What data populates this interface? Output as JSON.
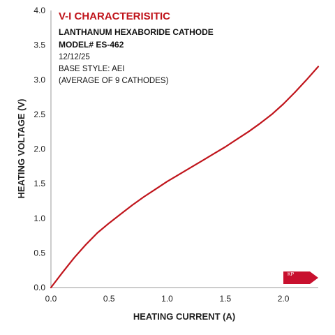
{
  "chart_data": {
    "type": "line",
    "title": "V-I CHARACTERISITIC",
    "subtitle_lines": [
      "LANTHANUM HEXABORIDE CATHODE",
      "MODEL# ES-462",
      "12/12/25",
      "BASE STYLE: AEI",
      "(AVERAGE OF 9 CATHODES)"
    ],
    "xlabel": "HEATING CURRENT (A)",
    "ylabel": "HEATING VOLTAGE (V)",
    "xlim": [
      0,
      2.3
    ],
    "ylim": [
      0,
      4.0
    ],
    "x_ticks": [
      "0.0",
      "0.5",
      "1.0",
      "1.5",
      "2.0"
    ],
    "y_ticks": [
      "0.0",
      "0.5",
      "1.0",
      "1.5",
      "2.0",
      "2.5",
      "3.0",
      "3.5",
      "4.0"
    ],
    "grid": false,
    "series": [
      {
        "color": "#c0141b",
        "x": [
          0,
          0.1,
          0.2,
          0.3,
          0.4,
          0.5,
          0.6,
          0.7,
          0.8,
          0.9,
          1.0,
          1.1,
          1.2,
          1.3,
          1.4,
          1.5,
          1.6,
          1.7,
          1.8,
          1.9,
          2.0,
          2.1,
          2.2,
          2.3
        ],
        "y": [
          0,
          0.22,
          0.43,
          0.62,
          0.79,
          0.93,
          1.06,
          1.19,
          1.31,
          1.42,
          1.53,
          1.63,
          1.73,
          1.83,
          1.93,
          2.03,
          2.14,
          2.25,
          2.37,
          2.5,
          2.65,
          2.82,
          3.0,
          3.19
        ]
      }
    ]
  },
  "logo": {
    "text": "KP",
    "color": "#c8102e"
  }
}
